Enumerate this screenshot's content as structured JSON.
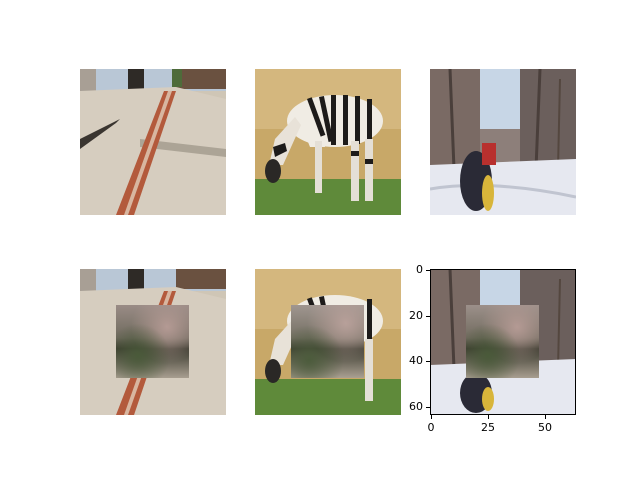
{
  "chart_data": {
    "type": "image_grid",
    "rows": 2,
    "cols": 3,
    "image_size": 64,
    "panels": [
      {
        "row": 0,
        "col": 0,
        "subject": "sidewalk-with-fire-hydrant",
        "masked": false,
        "axes_visible": false
      },
      {
        "row": 0,
        "col": 1,
        "subject": "zebra-grazing",
        "masked": false,
        "axes_visible": false
      },
      {
        "row": 0,
        "col": 2,
        "subject": "person-in-snowy-forest",
        "masked": false,
        "axes_visible": false
      },
      {
        "row": 1,
        "col": 0,
        "subject": "sidewalk-with-fire-hydrant",
        "masked": true,
        "axes_visible": false
      },
      {
        "row": 1,
        "col": 1,
        "subject": "zebra-grazing",
        "masked": true,
        "axes_visible": false
      },
      {
        "row": 1,
        "col": 2,
        "subject": "person-in-snowy-forest",
        "masked": true,
        "axes_visible": true
      }
    ],
    "mask_region": {
      "x_start": 16,
      "x_end": 48,
      "y_start": 16,
      "y_end": 48
    },
    "x_ticks": [
      0,
      25,
      50
    ],
    "y_ticks": [
      0,
      20,
      40,
      60
    ],
    "x_tick_labels": [
      "0",
      "25",
      "50"
    ],
    "y_tick_labels": [
      "0",
      "20",
      "40",
      "60"
    ],
    "xlim": [
      -0.5,
      63.5
    ],
    "ylim": [
      63.5,
      -0.5
    ]
  }
}
